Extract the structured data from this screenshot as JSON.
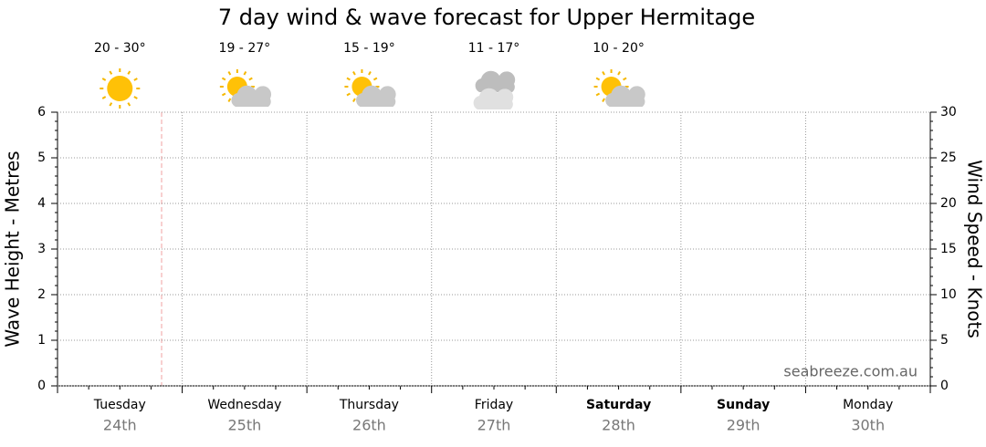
{
  "chart_data": {
    "type": "line",
    "title": "7 day wind & wave forecast for Upper Hermitage",
    "y_label": "Wave Height - Metres",
    "y2_label": "Wind Speed - Knots",
    "categories": [
      "Tuesday",
      "Wednesday",
      "Thursday",
      "Friday",
      "Saturday",
      "Sunday",
      "Monday"
    ],
    "dates": [
      "24th",
      "25th",
      "26th",
      "27th",
      "28th",
      "29th",
      "30th"
    ],
    "bold": [
      false,
      false,
      false,
      false,
      true,
      true,
      false
    ],
    "forecast": [
      {
        "temp": "20 - 30°",
        "icon": "sunny"
      },
      {
        "temp": "19 - 27°",
        "icon": "partly-cloudy"
      },
      {
        "temp": "15 - 19°",
        "icon": "partly-cloudy"
      },
      {
        "temp": "11 - 17°",
        "icon": "cloudy"
      },
      {
        "temp": "10 - 20°",
        "icon": "partly-cloudy"
      }
    ],
    "ylim": [
      0,
      6
    ],
    "yticks": [
      0,
      1,
      2,
      3,
      4,
      5,
      6
    ],
    "y2lim": [
      0,
      30
    ],
    "y2ticks": [
      0,
      5,
      10,
      15,
      20,
      25,
      30
    ],
    "grid": true,
    "watermark": "seabreeze.com.au"
  }
}
